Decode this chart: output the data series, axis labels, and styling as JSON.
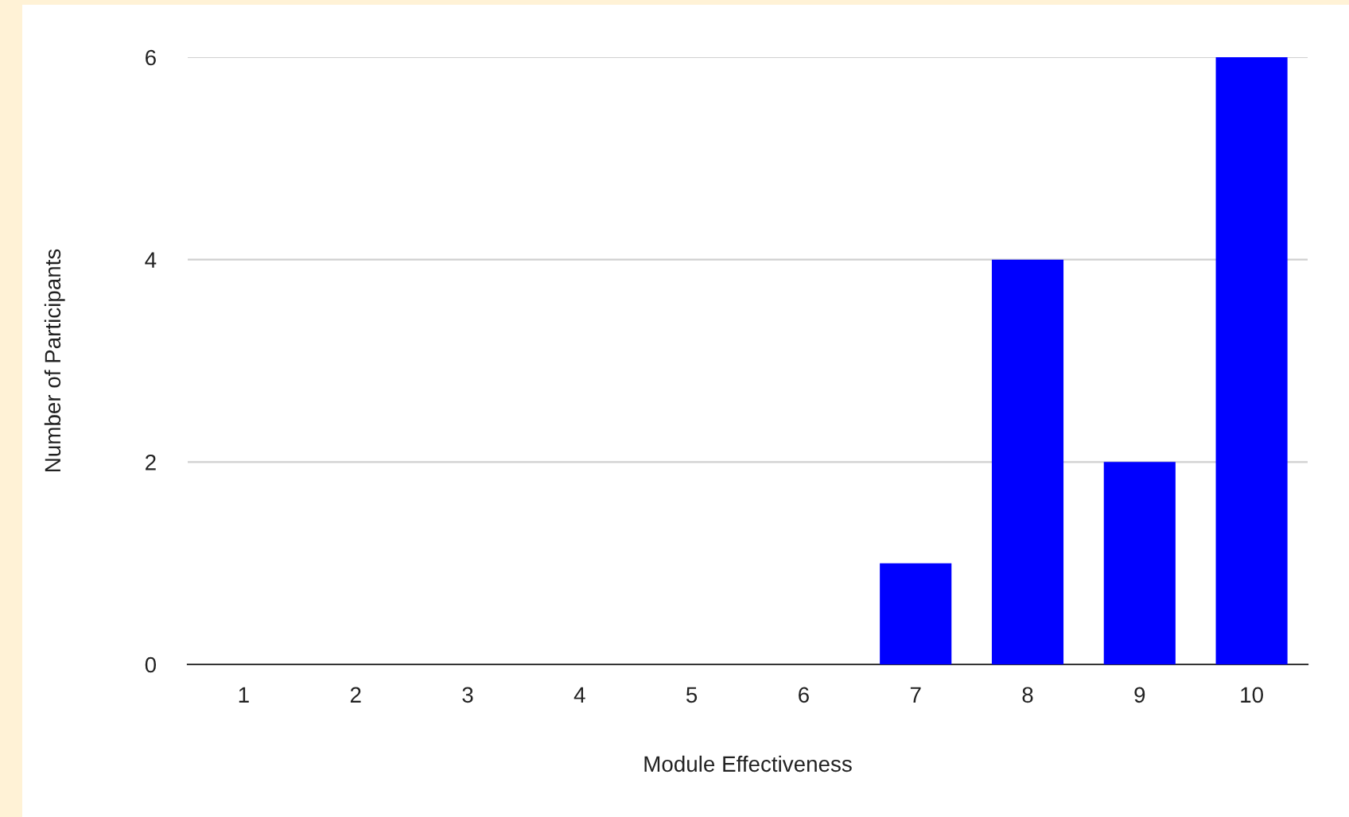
{
  "chart_data": {
    "type": "bar",
    "xlabel": "Module Effectiveness",
    "ylabel": "Number of Participants",
    "categories": [
      "1",
      "2",
      "3",
      "4",
      "5",
      "6",
      "7",
      "8",
      "9",
      "10"
    ],
    "values": [
      0,
      0,
      0,
      0,
      0,
      0,
      1,
      4,
      2,
      6
    ],
    "color": "#0000ff",
    "ylim": [
      0,
      6
    ],
    "yticks": [
      0,
      2,
      4,
      6
    ],
    "grid": "y",
    "legend": false
  }
}
